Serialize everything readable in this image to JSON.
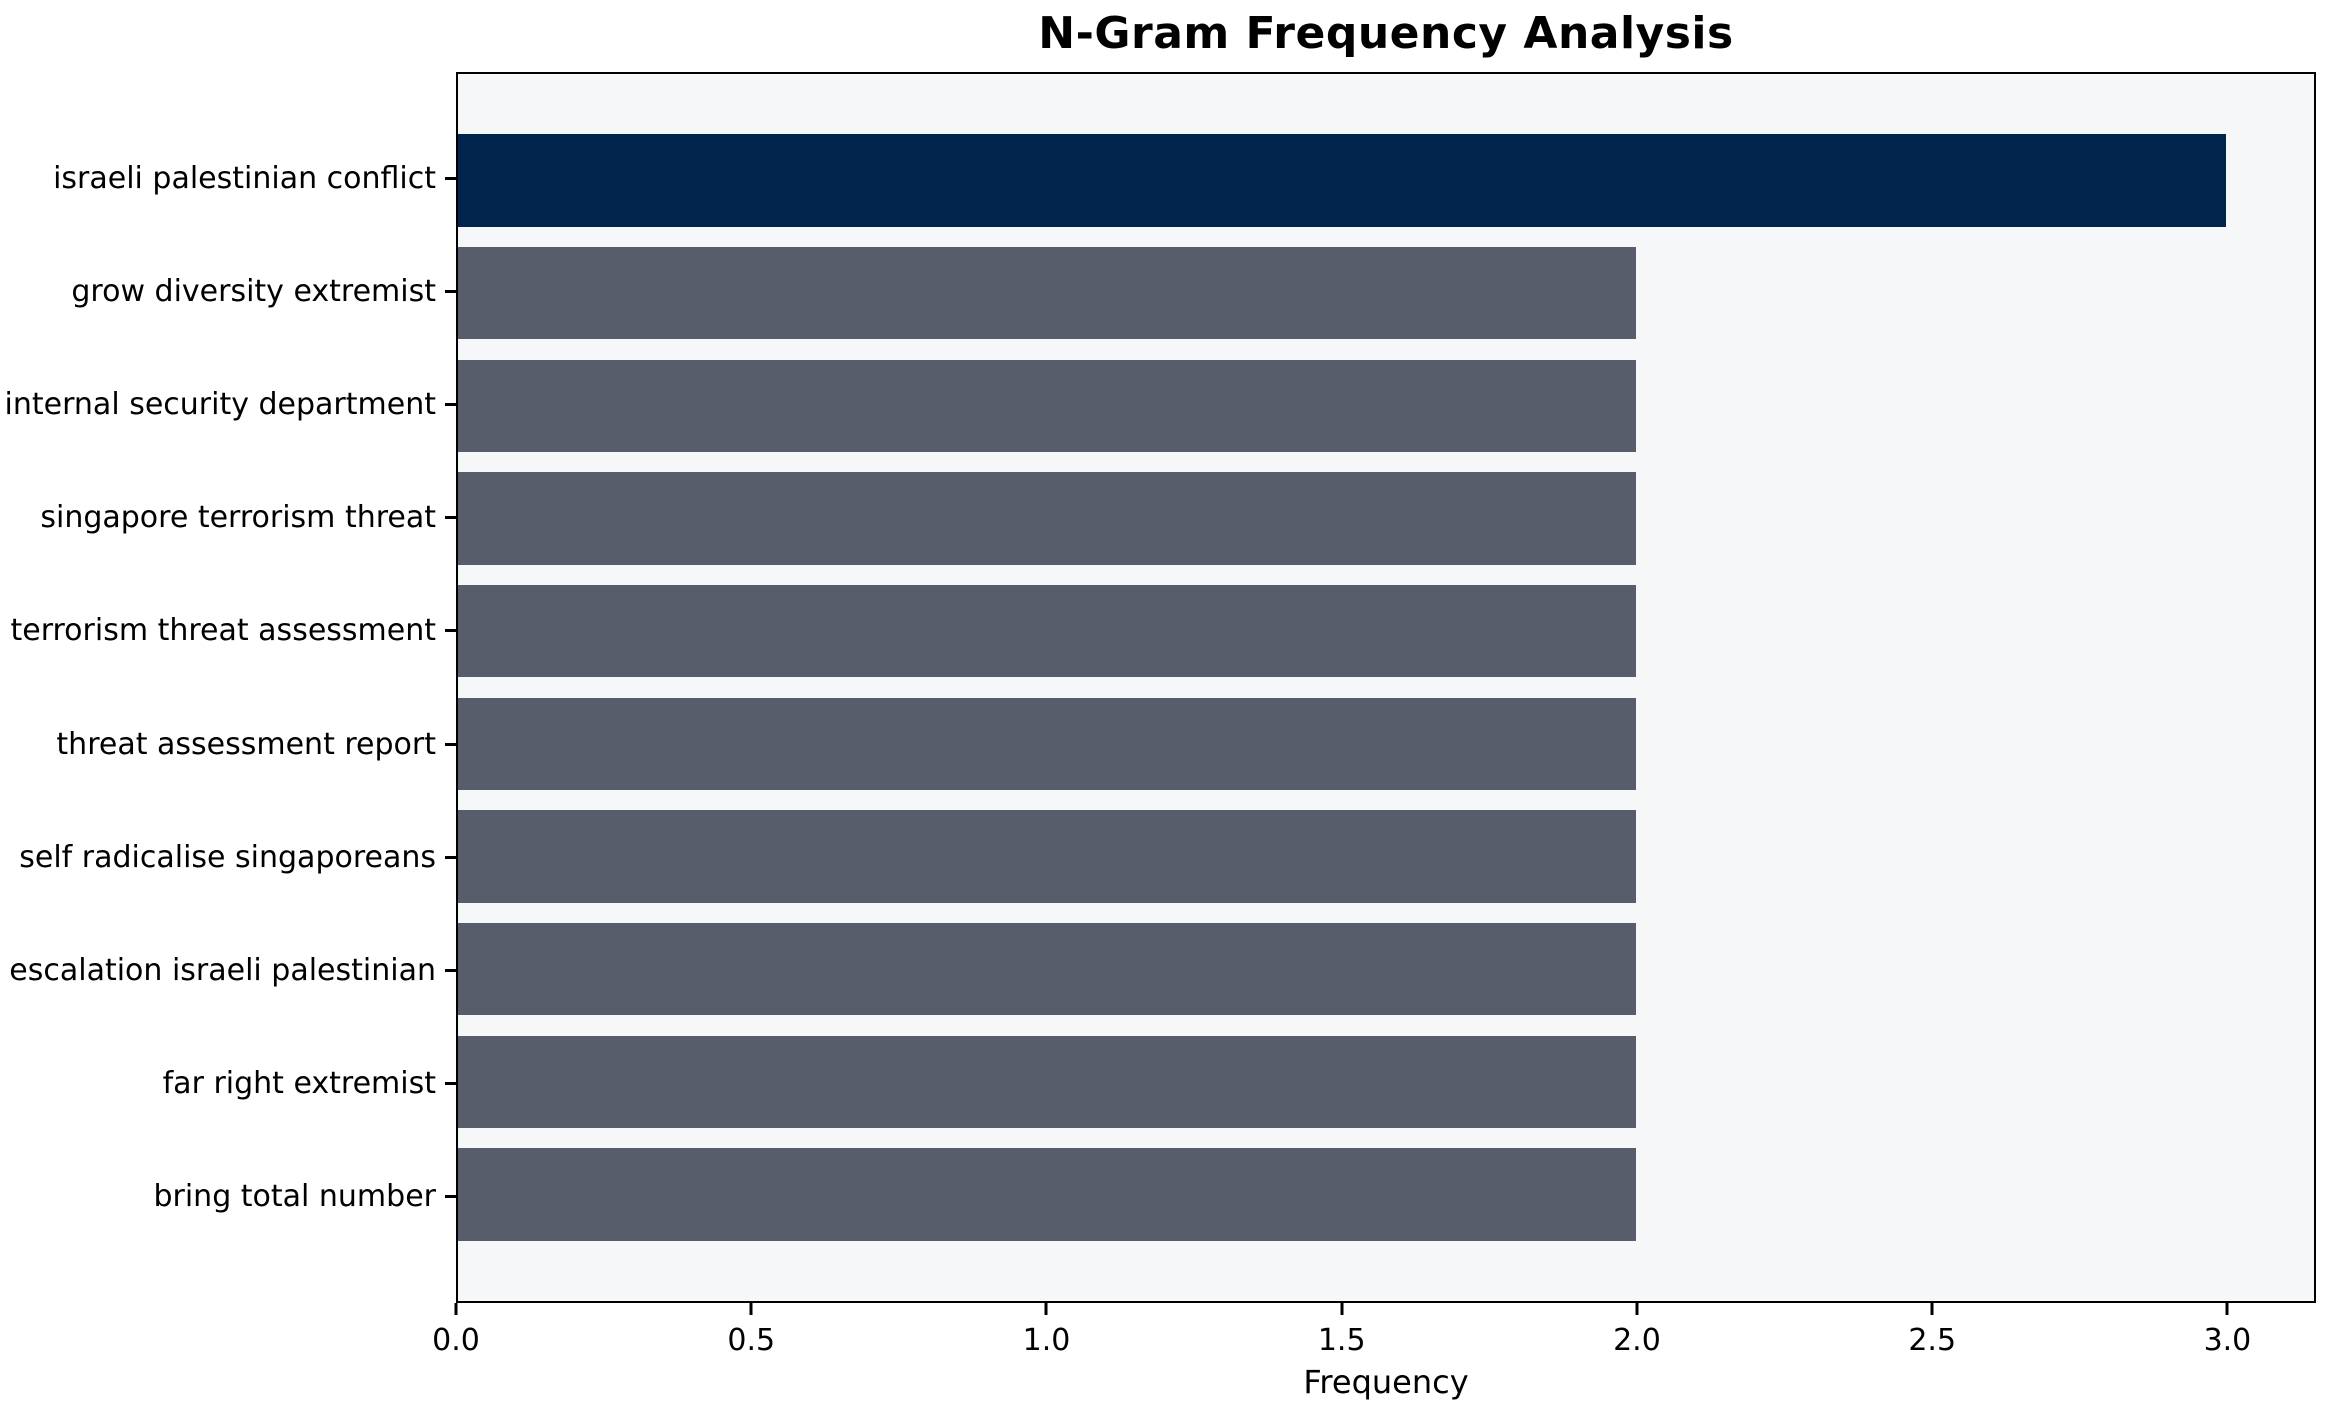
{
  "chart_data": {
    "type": "bar",
    "orientation": "horizontal",
    "title": "N-Gram Frequency Analysis",
    "xlabel": "Frequency",
    "categories": [
      "israeli palestinian conflict",
      "grow diversity extremist",
      "internal security department",
      "singapore terrorism threat",
      "terrorism threat assessment",
      "threat assessment report",
      "self radicalise singaporeans",
      "escalation israeli palestinian",
      "far right extremist",
      "bring total number"
    ],
    "values": [
      3,
      2,
      2,
      2,
      2,
      2,
      2,
      2,
      2,
      2
    ],
    "xlim": [
      0,
      3.15
    ],
    "xticks": [
      0.0,
      0.5,
      1.0,
      1.5,
      2.0,
      2.5,
      3.0
    ],
    "xtick_labels": [
      "0.0",
      "0.5",
      "1.0",
      "1.5",
      "2.0",
      "2.5",
      "3.0"
    ],
    "grid": false,
    "colors": {
      "highlight_bar": "#01244d",
      "default_bar": "#575d6b",
      "plot_background": "#f6f7f8",
      "figure_background": "#ffffff",
      "spine": "#000000",
      "text": "#000000"
    }
  }
}
